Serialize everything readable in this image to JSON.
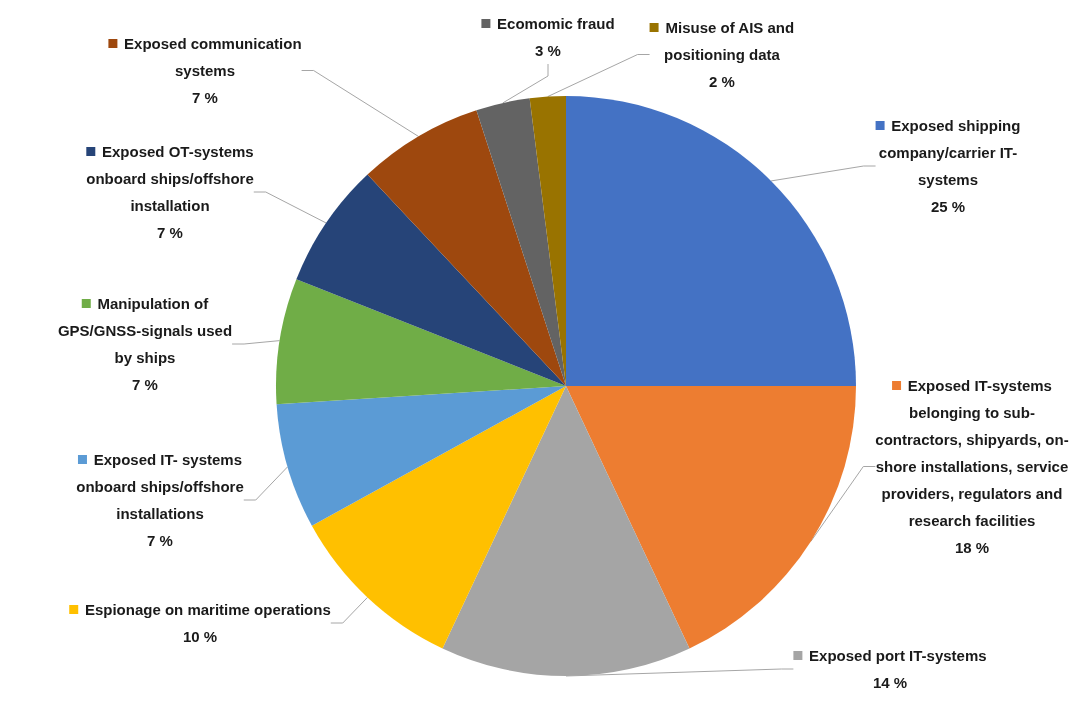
{
  "chart_data": {
    "type": "pie",
    "categories": [
      "Exposed shipping company/carrier IT-systems",
      "Exposed IT-systems belonging to sub-contractors, shipyards, on-shore installations, service providers, regulators and research facilities",
      "Exposed port IT-systems",
      "Espionage on maritime operations",
      "Exposed IT- systems onboard ships/offshore installations",
      "Manipulation of GPS/GNSS-signals used by ships",
      "Exposed OT-systems onboard ships/offshore installation",
      "Exposed communication systems",
      "Ecomomic fraud",
      "Misuse of AIS and positioning data"
    ],
    "values": [
      25,
      18,
      14,
      10,
      7,
      7,
      7,
      7,
      3,
      2
    ],
    "colors": [
      "#4472c4",
      "#ed7d31",
      "#a5a5a5",
      "#ffc000",
      "#5b9bd5",
      "#70ad47",
      "#264478",
      "#9e480e",
      "#636363",
      "#997300"
    ],
    "value_labels": [
      "25 %",
      "18 %",
      "14 %",
      "10 %",
      "7 %",
      "7 %",
      "7 %",
      "7 %",
      "3 %",
      "2 %"
    ],
    "legend": true
  }
}
